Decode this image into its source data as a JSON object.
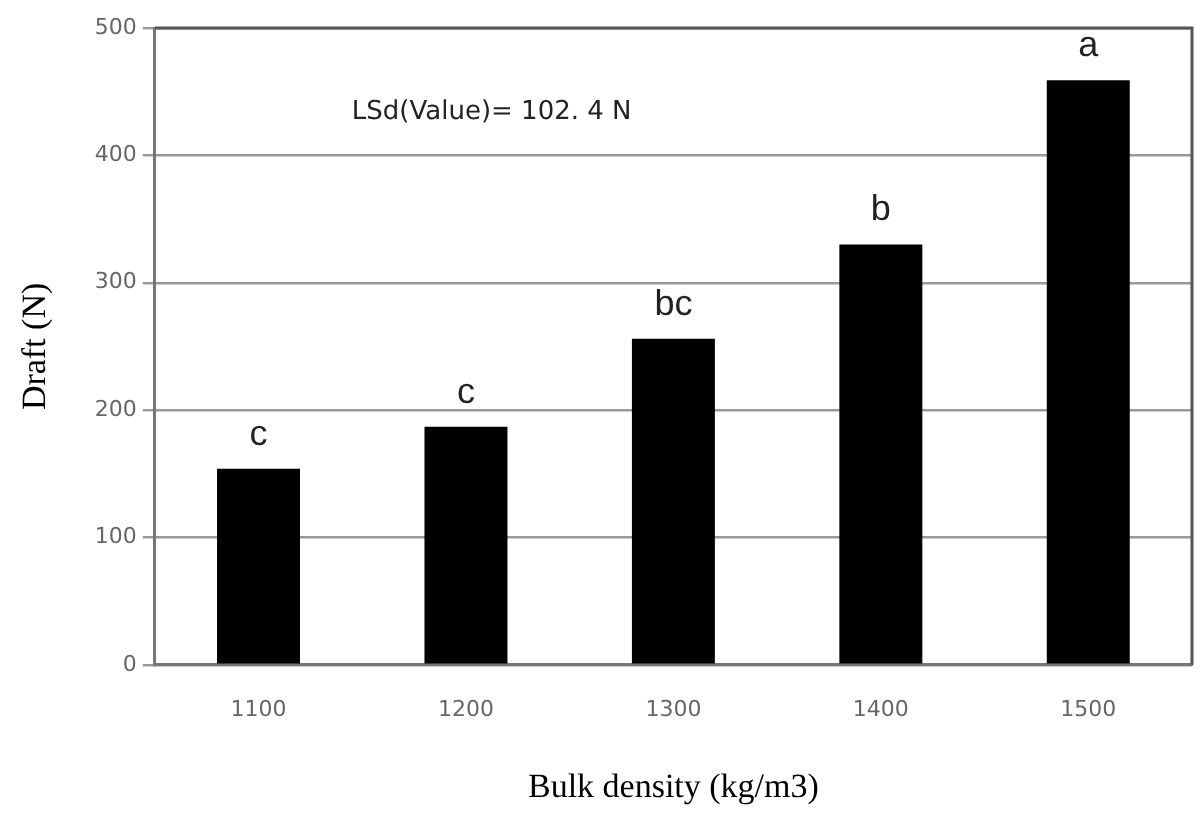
{
  "chart_data": {
    "type": "bar",
    "xlabel": "Bulk density (kg/m3)",
    "ylabel": "Draft (N)",
    "categories": [
      "1100",
      "1200",
      "1300",
      "1400",
      "1500"
    ],
    "values": [
      154,
      187,
      256,
      330,
      459
    ],
    "color": "#000000",
    "ylim": [
      0,
      500
    ],
    "yticks": [
      0,
      100,
      200,
      300,
      400,
      500
    ],
    "grid": "y",
    "legend": false,
    "annotations": [
      "LSd(Value)= 102. 4 N",
      {
        "text": "c",
        "x": "1100",
        "y": 154
      },
      {
        "text": "c",
        "x": "1200",
        "y": 187
      },
      {
        "text": "bc",
        "x": "1300",
        "y": 256
      },
      {
        "text": "b",
        "x": "1400",
        "y": 330
      },
      {
        "text": "a",
        "x": "1500",
        "y": 459
      }
    ]
  }
}
